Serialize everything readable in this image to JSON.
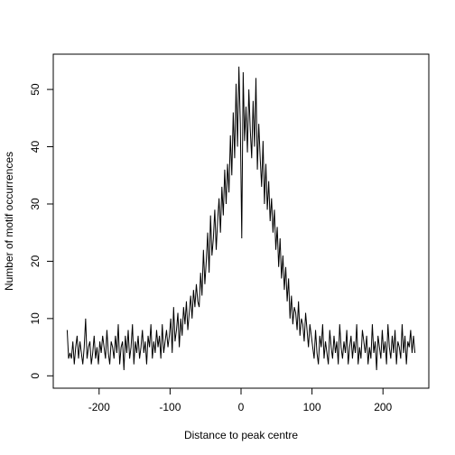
{
  "chart_data": {
    "type": "line",
    "xlabel": "Distance to peak centre",
    "ylabel": "Number of motif occurrences",
    "color": "#000000",
    "xlim": [
      -264.6,
      264.6
    ],
    "xticks": [
      -200,
      -100,
      0,
      100,
      200
    ],
    "ylim": [
      -2.16,
      56.16
    ],
    "yticks": [
      0,
      10,
      20,
      30,
      40,
      50
    ],
    "x": [
      -245,
      -243,
      -241,
      -239,
      -237,
      -235,
      -233,
      -231,
      -229,
      -227,
      -225,
      -223,
      -221,
      -219,
      -217,
      -215,
      -213,
      -211,
      -209,
      -207,
      -205,
      -203,
      -201,
      -199,
      -197,
      -195,
      -193,
      -191,
      -189,
      -187,
      -185,
      -183,
      -181,
      -179,
      -177,
      -175,
      -173,
      -171,
      -169,
      -167,
      -165,
      -163,
      -161,
      -159,
      -157,
      -155,
      -153,
      -151,
      -149,
      -147,
      -145,
      -143,
      -141,
      -139,
      -137,
      -135,
      -133,
      -131,
      -129,
      -127,
      -125,
      -123,
      -121,
      -119,
      -117,
      -115,
      -113,
      -111,
      -109,
      -107,
      -105,
      -103,
      -101,
      -99,
      -97,
      -95,
      -93,
      -91,
      -89,
      -87,
      -85,
      -83,
      -81,
      -79,
      -77,
      -75,
      -73,
      -71,
      -69,
      -67,
      -65,
      -63,
      -61,
      -59,
      -57,
      -55,
      -53,
      -51,
      -49,
      -47,
      -45,
      -43,
      -41,
      -39,
      -37,
      -35,
      -33,
      -31,
      -29,
      -27,
      -25,
      -23,
      -21,
      -19,
      -17,
      -15,
      -13,
      -11,
      -9,
      -7,
      -5,
      -3,
      -1,
      1,
      3,
      5,
      7,
      9,
      11,
      13,
      15,
      17,
      19,
      21,
      23,
      25,
      27,
      29,
      31,
      33,
      35,
      37,
      39,
      41,
      43,
      45,
      47,
      49,
      51,
      53,
      55,
      57,
      59,
      61,
      63,
      65,
      67,
      69,
      71,
      73,
      75,
      77,
      79,
      81,
      83,
      85,
      87,
      89,
      91,
      93,
      95,
      97,
      99,
      101,
      103,
      105,
      107,
      109,
      111,
      113,
      115,
      117,
      119,
      121,
      123,
      125,
      127,
      129,
      131,
      133,
      135,
      137,
      139,
      141,
      143,
      145,
      147,
      149,
      151,
      153,
      155,
      157,
      159,
      161,
      163,
      165,
      167,
      169,
      171,
      173,
      175,
      177,
      179,
      181,
      183,
      185,
      187,
      189,
      191,
      193,
      195,
      197,
      199,
      201,
      203,
      205,
      207,
      209,
      211,
      213,
      215,
      217,
      219,
      221,
      223,
      225,
      227,
      229,
      231,
      233,
      235,
      237,
      239,
      241,
      243,
      245
    ],
    "values": [
      8,
      3,
      4,
      3,
      6,
      2,
      5,
      7,
      3,
      6,
      4,
      2,
      5,
      10,
      3,
      5,
      6,
      2,
      4,
      7,
      3,
      5,
      2,
      6,
      4,
      7,
      5,
      3,
      8,
      4,
      2,
      6,
      5,
      3,
      7,
      4,
      9,
      2,
      5,
      6,
      1,
      7,
      4,
      8,
      3,
      5,
      9,
      2,
      6,
      4,
      7,
      3,
      5,
      8,
      4,
      6,
      2,
      7,
      5,
      9,
      3,
      6,
      4,
      8,
      5,
      7,
      3,
      9,
      4,
      6,
      8,
      5,
      7,
      10,
      4,
      12,
      6,
      8,
      11,
      5,
      10,
      7,
      12,
      9,
      13,
      8,
      11,
      14,
      10,
      15,
      12,
      16,
      13,
      12,
      18,
      14,
      22,
      16,
      20,
      25,
      18,
      28,
      21,
      24,
      29,
      22,
      27,
      31,
      25,
      33,
      28,
      36,
      30,
      37,
      32,
      42,
      35,
      46,
      38,
      51,
      40,
      54,
      44,
      24,
      53,
      41,
      47,
      39,
      50,
      43,
      38,
      48,
      40,
      52,
      36,
      44,
      38,
      33,
      41,
      30,
      37,
      29,
      34,
      27,
      31,
      25,
      29,
      22,
      26,
      19,
      24,
      17,
      21,
      15,
      19,
      13,
      17,
      10,
      14,
      9,
      12,
      11,
      8,
      13,
      7,
      10,
      9,
      6,
      11,
      8,
      5,
      9,
      7,
      5,
      3,
      8,
      4,
      2,
      7,
      5,
      9,
      3,
      6,
      4,
      2,
      8,
      5,
      3,
      7,
      4,
      6,
      2,
      9,
      5,
      3,
      6,
      4,
      8,
      2,
      5,
      7,
      3,
      6,
      4,
      9,
      2,
      5,
      3,
      8,
      6,
      4,
      7,
      2,
      5,
      3,
      9,
      4,
      6,
      1,
      7,
      5,
      3,
      8,
      4,
      6,
      2,
      9,
      5,
      3,
      7,
      4,
      8,
      2,
      6,
      5,
      3,
      9,
      4,
      7,
      2,
      6,
      5,
      8,
      4,
      7,
      4
    ]
  }
}
